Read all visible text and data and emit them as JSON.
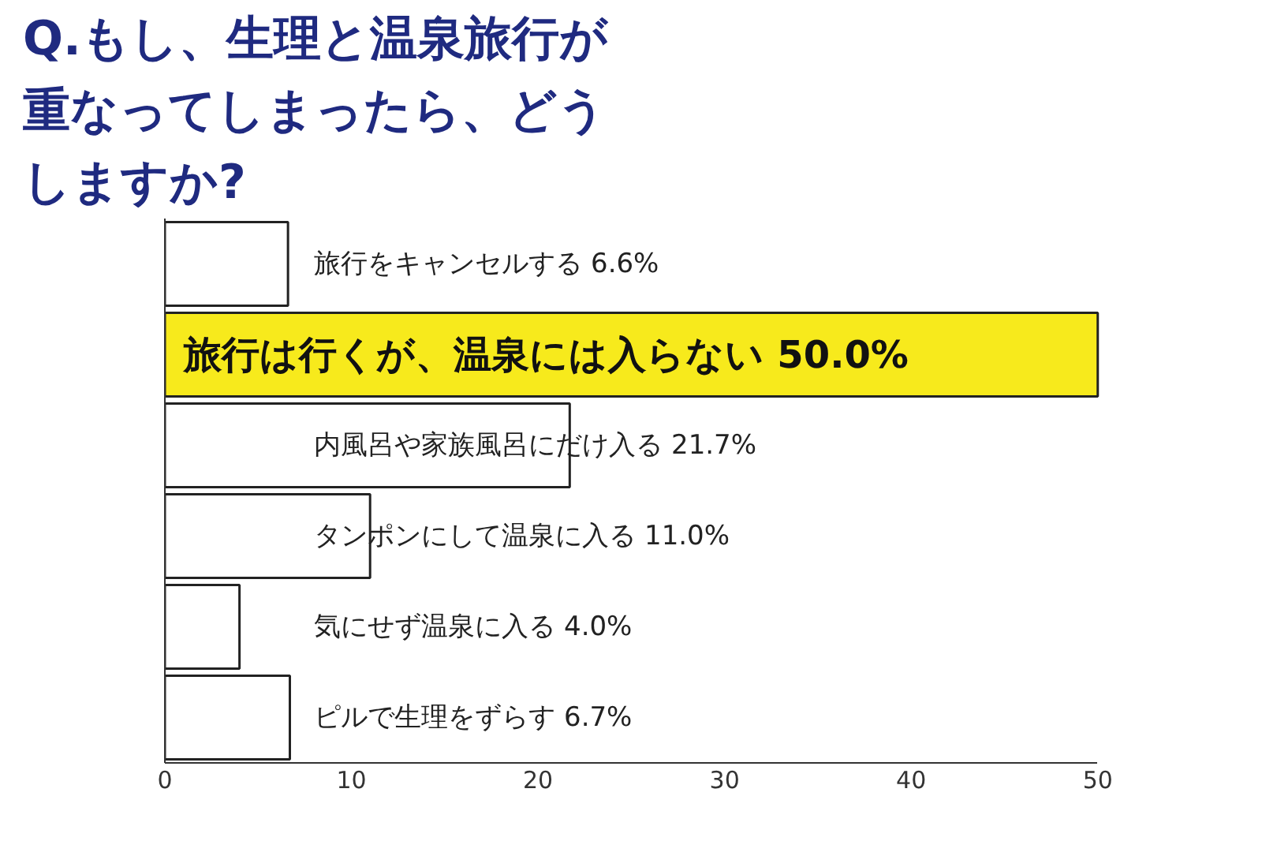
{
  "chart_data": {
    "type": "bar",
    "orientation": "horizontal",
    "title": "Q.もし、生理と温泉旅行が重なってしまったら、どうしますか?",
    "categories": [
      "旅行をキャンセルする",
      "旅行は行くが、温泉には入らない",
      "内風呂や家族風呂にだけ入る",
      "タンポンにして温泉に入る",
      "気にせず温泉に入る",
      "ピルで生理をずらす"
    ],
    "values": [
      6.6,
      50.0,
      21.7,
      11.0,
      4.0,
      6.7
    ],
    "value_labels": [
      "6.6%",
      "50.0%",
      "21.7%",
      "11.0%",
      "4.0%",
      "6.7%"
    ],
    "colors": [
      "#ffffff",
      "#f7ea1c",
      "#ffffff",
      "#ffffff",
      "#ffffff",
      "#ffffff"
    ],
    "xlim": [
      0,
      50
    ],
    "xticks": [
      0,
      10,
      20,
      30,
      40,
      50
    ],
    "tick_labels": "x",
    "grid": false
  }
}
